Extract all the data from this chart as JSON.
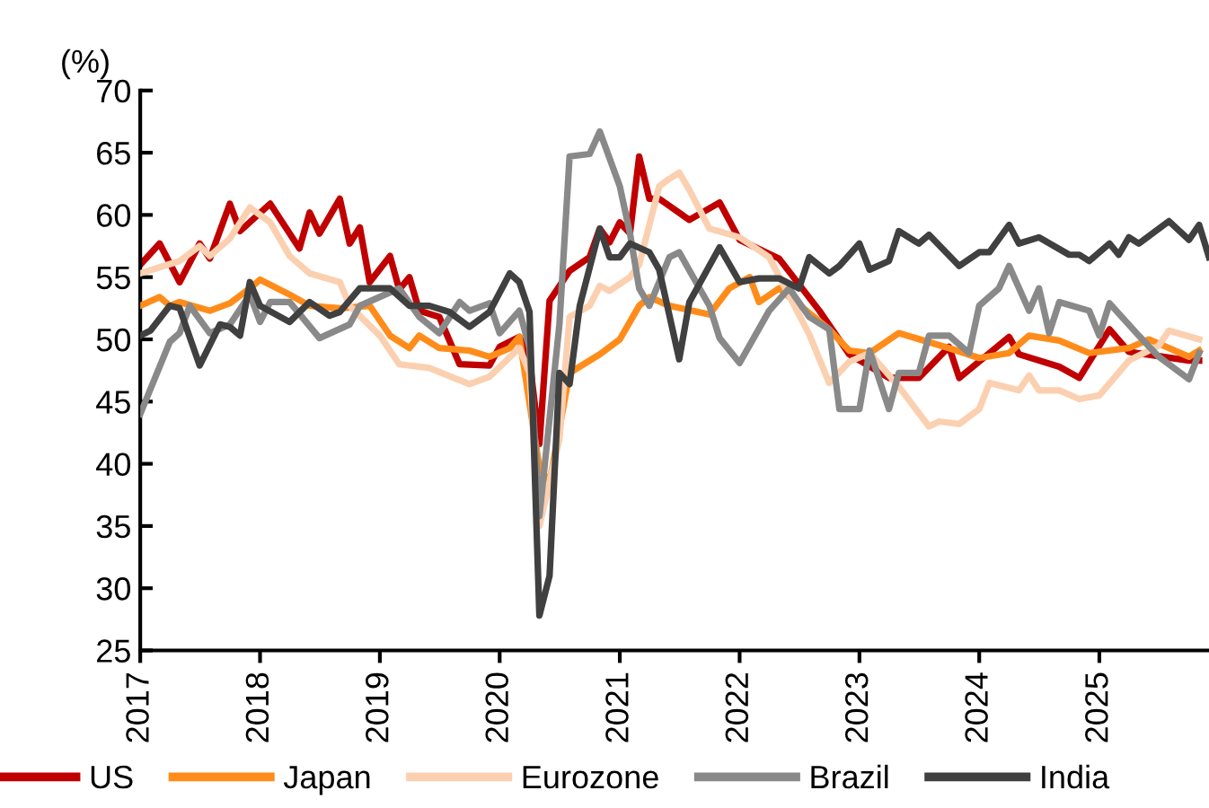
{
  "chart_data": {
    "type": "line",
    "ylabel": "(%)",
    "xlim": [
      "2017-01",
      "2025-12"
    ],
    "xticks": [
      "2017",
      "2018",
      "2019",
      "2020",
      "2021",
      "2022",
      "2023",
      "2024",
      "2025"
    ],
    "ylim": [
      25,
      70
    ],
    "yticks": [
      25,
      30,
      35,
      40,
      45,
      50,
      55,
      60,
      65,
      70
    ],
    "grid": false,
    "legend": "bottom",
    "marker": "none",
    "line_style": "solid",
    "series": [
      {
        "name": "US",
        "color": "#c00000",
        "x": [
          "2017-01",
          "2017-03",
          "2017-05",
          "2017-07",
          "2017-08",
          "2017-10",
          "2017-11",
          "2018-02",
          "2018-05",
          "2018-06",
          "2018-07",
          "2018-09",
          "2018-10",
          "2018-11",
          "2018-12",
          "2019-02",
          "2019-03",
          "2019-04",
          "2019-05",
          "2019-07",
          "2019-09",
          "2019-12",
          "2020-01",
          "2020-03",
          "2020-04",
          "2020-05",
          "2020-06",
          "2020-08",
          "2020-10",
          "2020-11",
          "2020-12",
          "2021-01",
          "2021-02",
          "2021-03",
          "2021-04",
          "2021-05",
          "2021-08",
          "2021-11",
          "2022-01",
          "2022-05",
          "2022-09",
          "2022-12",
          "2023-04",
          "2023-07",
          "2023-10",
          "2023-11",
          "2024-04",
          "2024-05",
          "2024-09",
          "2024-11",
          "2025-02",
          "2025-04",
          "2025-10",
          "2025-11"
        ],
        "values": [
          56,
          57.7,
          54.6,
          57.7,
          56.5,
          60.9,
          58.7,
          60.9,
          57.3,
          60.2,
          58.5,
          61.3,
          57.7,
          59,
          54.6,
          56.7,
          54,
          55,
          52.3,
          51.8,
          48,
          47.9,
          49.4,
          50.2,
          48.4,
          41.6,
          53.1,
          55.5,
          56.6,
          58.9,
          57.8,
          59.4,
          58.5,
          64.7,
          61.3,
          61.3,
          59.6,
          61,
          58,
          56.5,
          52.3,
          48.8,
          46.9,
          46.9,
          49.4,
          46.9,
          50.2,
          48.8,
          47.8,
          46.9,
          50.8,
          49,
          48.3,
          48.3
        ]
      },
      {
        "name": "Japan",
        "color": "#ff8c1a",
        "x": [
          "2017-01",
          "2017-03",
          "2017-04",
          "2017-05",
          "2017-08",
          "2017-10",
          "2017-12",
          "2018-01",
          "2018-04",
          "2018-06",
          "2018-09",
          "2018-12",
          "2019-02",
          "2019-04",
          "2019-05",
          "2019-07",
          "2019-10",
          "2019-12",
          "2020-02",
          "2020-03",
          "2020-05",
          "2020-06",
          "2020-08",
          "2020-11",
          "2021-01",
          "2021-03",
          "2021-04",
          "2021-06",
          "2021-10",
          "2021-12",
          "2022-02",
          "2022-03",
          "2022-05",
          "2022-10",
          "2022-12",
          "2023-02",
          "2023-05",
          "2023-10",
          "2024-01",
          "2024-04",
          "2024-06",
          "2024-09",
          "2024-12",
          "2025-04",
          "2025-06",
          "2025-10",
          "2025-11"
        ],
        "values": [
          52.7,
          53.4,
          52.7,
          53,
          52.3,
          52.9,
          54.1,
          54.8,
          53.6,
          52.7,
          52.5,
          52.7,
          50.3,
          49.3,
          50.3,
          49.3,
          49.1,
          48.6,
          49.3,
          50.2,
          39.7,
          38.5,
          47.3,
          48.8,
          50,
          52.7,
          53.4,
          52.7,
          52,
          54.1,
          55,
          53,
          54.1,
          50.8,
          49.1,
          48.9,
          50.5,
          49.3,
          48.5,
          48.9,
          50.3,
          49.9,
          48.9,
          49.3,
          50,
          48.6,
          49.1
        ]
      },
      {
        "name": "Eurozone",
        "color": "#fbd0b0",
        "x": [
          "2017-01",
          "2017-05",
          "2017-07",
          "2017-08",
          "2017-10",
          "2017-12",
          "2018-02",
          "2018-04",
          "2018-06",
          "2018-09",
          "2018-10",
          "2019-01",
          "2019-03",
          "2019-06",
          "2019-10",
          "2019-12",
          "2020-03",
          "2020-04",
          "2020-05",
          "2020-07",
          "2020-08",
          "2020-10",
          "2020-11",
          "2020-12",
          "2021-02",
          "2021-03",
          "2021-05",
          "2021-06",
          "2021-07",
          "2021-08",
          "2021-10",
          "2022-01",
          "2022-04",
          "2022-08",
          "2022-10",
          "2022-12",
          "2023-02",
          "2023-05",
          "2023-08",
          "2023-09",
          "2023-11",
          "2024-01",
          "2024-02",
          "2024-05",
          "2024-06",
          "2024-07",
          "2024-09",
          "2024-11",
          "2025-01",
          "2025-04",
          "2025-07",
          "2025-08",
          "2025-11"
        ],
        "values": [
          55.3,
          56.3,
          57.5,
          56.7,
          58.1,
          60.6,
          59.4,
          56.7,
          55.3,
          54.6,
          52.7,
          50.3,
          48,
          47.7,
          46.4,
          47,
          49.3,
          47.3,
          35,
          42,
          51.8,
          52.7,
          54.3,
          53.9,
          55,
          56,
          62.3,
          62.9,
          63.4,
          62,
          58.9,
          58.2,
          56.6,
          50.4,
          46.5,
          48.2,
          48.9,
          46.2,
          43,
          43.4,
          43.2,
          44.4,
          46.5,
          45.9,
          47.1,
          45.9,
          45.9,
          45.2,
          45.5,
          48.3,
          49.5,
          50.7,
          50
        ]
      },
      {
        "name": "Brazil",
        "color": "#898989",
        "x": [
          "2017-01",
          "2017-04",
          "2017-05",
          "2017-06",
          "2017-08",
          "2017-10",
          "2017-12",
          "2018-01",
          "2018-02",
          "2018-04",
          "2018-07",
          "2018-10",
          "2018-11",
          "2019-03",
          "2019-05",
          "2019-07",
          "2019-09",
          "2019-10",
          "2019-12",
          "2020-01",
          "2020-03",
          "2020-04",
          "2020-05",
          "2020-07",
          "2020-08",
          "2020-10",
          "2020-11",
          "2021-01",
          "2021-02",
          "2021-03",
          "2021-04",
          "2021-06",
          "2021-07",
          "2021-09",
          "2021-10",
          "2021-11",
          "2022-01",
          "2022-04",
          "2022-06",
          "2022-08",
          "2022-10",
          "2022-11",
          "2023-01",
          "2023-02",
          "2023-04",
          "2023-05",
          "2023-07",
          "2023-08",
          "2023-10",
          "2023-12",
          "2024-01",
          "2024-03",
          "2024-04",
          "2024-06",
          "2024-07",
          "2024-08",
          "2024-09",
          "2024-12",
          "2025-01",
          "2025-02",
          "2025-05",
          "2025-07",
          "2025-10",
          "2025-11"
        ],
        "values": [
          44,
          49.8,
          50.5,
          52.7,
          50.5,
          51.2,
          53.6,
          51.4,
          53,
          53,
          50.1,
          51.2,
          52.7,
          54.1,
          51.8,
          50.5,
          53,
          52.3,
          52.9,
          50.5,
          52.3,
          49.3,
          35.8,
          51.2,
          64.7,
          64.9,
          66.7,
          62.3,
          58.5,
          54.1,
          52.7,
          56.6,
          57,
          54.1,
          52.7,
          50.1,
          48.1,
          52.3,
          54.1,
          51.8,
          50.8,
          44.4,
          44.4,
          49.1,
          44.4,
          47.3,
          47.3,
          50.3,
          50.3,
          48.9,
          52.7,
          54.1,
          55.9,
          52.3,
          54.1,
          50.5,
          53,
          52.3,
          50.3,
          52.9,
          50.3,
          48.6,
          46.8,
          48.9
        ]
      },
      {
        "name": "India",
        "color": "#404040",
        "x": [
          "2017-01",
          "2017-02",
          "2017-04",
          "2017-05",
          "2017-07",
          "2017-09",
          "2017-10",
          "2017-11",
          "2017-12",
          "2018-01",
          "2018-04",
          "2018-06",
          "2018-08",
          "2018-09",
          "2018-11",
          "2019-02",
          "2019-04",
          "2019-06",
          "2019-08",
          "2019-10",
          "2019-12",
          "2020-02",
          "2020-03",
          "2020-04",
          "2020-05",
          "2020-06",
          "2020-07",
          "2020-08",
          "2020-09",
          "2020-11",
          "2020-12",
          "2021-01",
          "2021-02",
          "2021-04",
          "2021-05",
          "2021-07",
          "2021-08",
          "2021-11",
          "2022-01",
          "2022-03",
          "2022-05",
          "2022-07",
          "2022-08",
          "2022-10",
          "2022-11",
          "2023-01",
          "2023-02",
          "2023-04",
          "2023-05",
          "2023-07",
          "2023-08",
          "2023-11",
          "2024-01",
          "2024-02",
          "2024-04",
          "2024-05",
          "2024-07",
          "2024-10",
          "2024-11",
          "2024-12",
          "2025-02",
          "2025-03",
          "2025-04",
          "2025-05",
          "2025-08",
          "2025-10",
          "2025-11",
          "2025-12"
        ],
        "values": [
          50.3,
          50.7,
          52.7,
          52.5,
          47.9,
          51.2,
          51,
          50.3,
          54.6,
          52.7,
          51.4,
          53,
          51.9,
          52.2,
          54.1,
          54.1,
          52.7,
          52.7,
          52.2,
          51,
          52.2,
          55.3,
          54.6,
          52.2,
          27.8,
          31,
          47.3,
          46.4,
          52.7,
          58.9,
          56.6,
          56.6,
          57.7,
          57,
          55.6,
          48.4,
          53,
          57.4,
          54.6,
          54.9,
          54.9,
          54.1,
          56.6,
          55.3,
          55.9,
          57.7,
          55.6,
          56.3,
          58.7,
          57.7,
          58.4,
          55.9,
          57,
          57,
          59.2,
          57.7,
          58.2,
          56.8,
          56.8,
          56.3,
          57.7,
          56.8,
          58.2,
          57.7,
          59.5,
          58,
          59.2,
          56.6
        ]
      }
    ]
  }
}
